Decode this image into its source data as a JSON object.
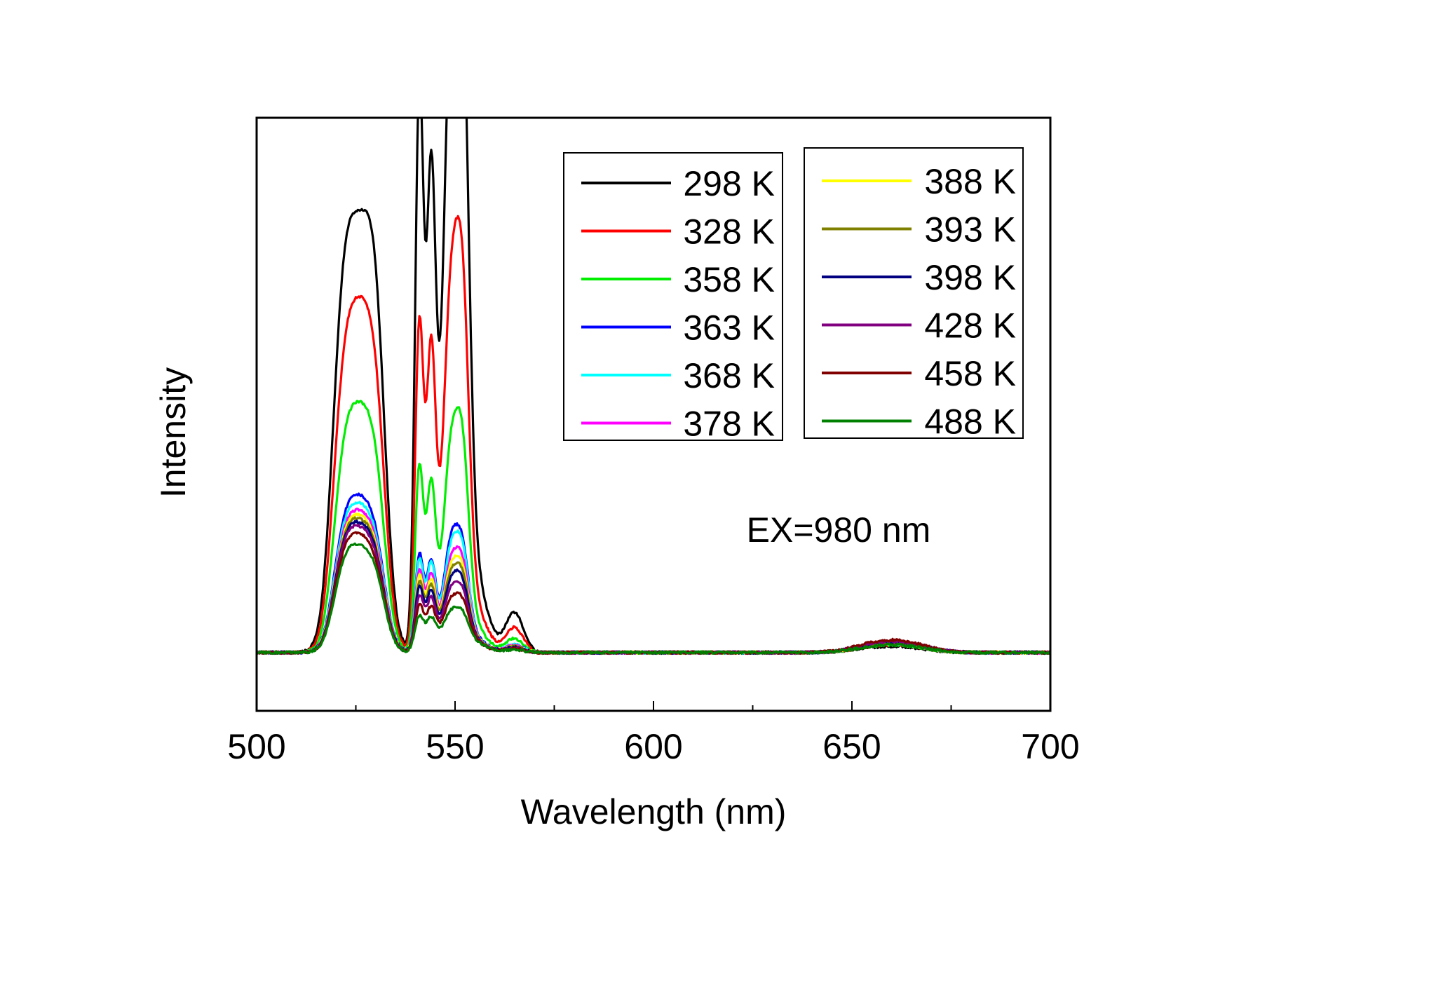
{
  "chart_data": {
    "type": "line",
    "xlabel": "Wavelength (nm)",
    "ylabel": "Intensity",
    "xlim": [
      500,
      700
    ],
    "ylim": [
      -0.06,
      0.55
    ],
    "x_ticks": [
      "500",
      "550",
      "600",
      "650",
      "700"
    ],
    "y_ticks_shown": false,
    "grid": false,
    "annotation": "EX=980 nm",
    "legend": {
      "placement": "top-right",
      "columns": 2
    },
    "peak_wavelengths": [
      522,
      526,
      530,
      541,
      544,
      549,
      552,
      565,
      656,
      664
    ],
    "series": [
      {
        "name": "298 K",
        "color": "#000000",
        "peaks": [
          0.215,
          0.18,
          0.226,
          0.47,
          0.378,
          0.5,
          0.457,
          0.04,
          0.004,
          0.004
        ]
      },
      {
        "name": "328 K",
        "color": "#ff0000",
        "peaks": [
          0.18,
          0.175,
          0.18,
          0.273,
          0.245,
          0.29,
          0.268,
          0.025,
          0.005,
          0.005
        ]
      },
      {
        "name": "358 K",
        "color": "#00ee00",
        "peaks": [
          0.136,
          0.13,
          0.132,
          0.154,
          0.134,
          0.164,
          0.15,
          0.014,
          0.005,
          0.005
        ]
      },
      {
        "name": "363 K",
        "color": "#0000ff",
        "peaks": [
          0.089,
          0.085,
          0.082,
          0.08,
          0.072,
          0.088,
          0.075,
          0.008,
          0.006,
          0.006
        ]
      },
      {
        "name": "368 K",
        "color": "#00ffff",
        "peaks": [
          0.085,
          0.08,
          0.078,
          0.076,
          0.07,
          0.082,
          0.072,
          0.008,
          0.006,
          0.006
        ]
      },
      {
        "name": "378 K",
        "color": "#ff00ff",
        "peaks": [
          0.08,
          0.077,
          0.074,
          0.066,
          0.06,
          0.07,
          0.062,
          0.007,
          0.006,
          0.006
        ]
      },
      {
        "name": "388 K",
        "color": "#ffff00",
        "peaks": [
          0.078,
          0.074,
          0.071,
          0.06,
          0.055,
          0.064,
          0.056,
          0.006,
          0.006,
          0.006
        ]
      },
      {
        "name": "393 K",
        "color": "#808000",
        "peaks": [
          0.076,
          0.072,
          0.069,
          0.055,
          0.05,
          0.058,
          0.051,
          0.006,
          0.006,
          0.006
        ]
      },
      {
        "name": "398 K",
        "color": "#000080",
        "peaks": [
          0.074,
          0.07,
          0.067,
          0.05,
          0.045,
          0.052,
          0.046,
          0.005,
          0.007,
          0.007
        ]
      },
      {
        "name": "428 K",
        "color": "#800080",
        "peaks": [
          0.072,
          0.068,
          0.064,
          0.042,
          0.038,
          0.044,
          0.039,
          0.005,
          0.007,
          0.007
        ]
      },
      {
        "name": "458 K",
        "color": "#800000",
        "peaks": [
          0.068,
          0.064,
          0.06,
          0.033,
          0.03,
          0.035,
          0.031,
          0.004,
          0.008,
          0.008
        ]
      },
      {
        "name": "488 K",
        "color": "#008000",
        "peaks": [
          0.062,
          0.058,
          0.055,
          0.024,
          0.021,
          0.025,
          0.022,
          0.003,
          0.005,
          0.005
        ]
      }
    ]
  }
}
